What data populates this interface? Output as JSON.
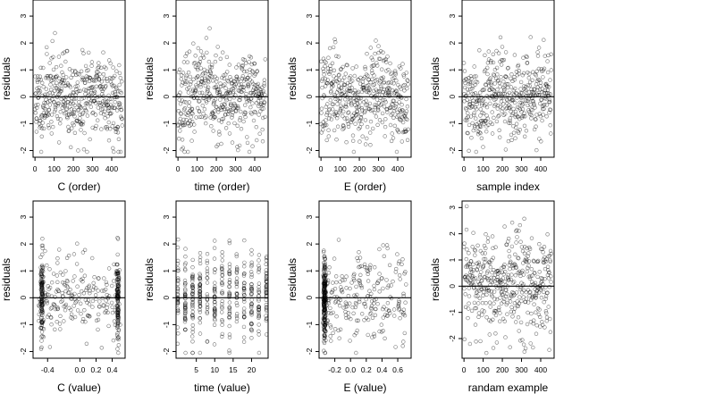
{
  "figure": {
    "background": "#ffffff",
    "point_color": "#000000",
    "line_color": "#000000"
  },
  "chart_data": [
    {
      "type": "scatter",
      "xlabel": "C (order)",
      "ylabel": "residuals",
      "xlim": [
        -10,
        470
      ],
      "ylim": [
        -2.25,
        3.6
      ],
      "xticks": [
        0,
        100,
        200,
        300,
        400
      ],
      "xticklabels": [
        "0",
        "100",
        "200",
        "300",
        "400"
      ],
      "yticks": [
        -2,
        -1,
        0,
        1,
        2,
        3
      ],
      "yticklabels": [
        "-2",
        "-1",
        "0",
        "1",
        "2",
        "3"
      ],
      "hline": 0,
      "grid": false,
      "n_points": 450,
      "point_style": "open-circle",
      "pattern": "ordered",
      "seed": 11
    },
    {
      "type": "scatter",
      "xlabel": "time (order)",
      "ylabel": "residuals",
      "xlim": [
        -10,
        470
      ],
      "ylim": [
        -2.25,
        3.6
      ],
      "xticks": [
        0,
        100,
        200,
        300,
        400
      ],
      "xticklabels": [
        "0",
        "100",
        "200",
        "300",
        "400"
      ],
      "yticks": [
        -2,
        -1,
        0,
        1,
        2,
        3
      ],
      "yticklabels": [
        "-2",
        "-1",
        "0",
        "1",
        "2",
        "3"
      ],
      "hline": 0,
      "grid": false,
      "n_points": 450,
      "point_style": "open-circle",
      "pattern": "ordered",
      "seed": 23
    },
    {
      "type": "scatter",
      "xlabel": "E (order)",
      "ylabel": "residuals",
      "xlim": [
        -10,
        470
      ],
      "ylim": [
        -2.25,
        3.6
      ],
      "xticks": [
        0,
        100,
        200,
        300,
        400
      ],
      "xticklabels": [
        "0",
        "100",
        "200",
        "300",
        "400"
      ],
      "yticks": [
        -2,
        -1,
        0,
        1,
        2,
        3
      ],
      "yticklabels": [
        "-2",
        "-1",
        "0",
        "1",
        "2",
        "3"
      ],
      "hline": 0,
      "grid": false,
      "n_points": 450,
      "point_style": "open-circle",
      "pattern": "ordered",
      "seed": 37
    },
    {
      "type": "scatter",
      "xlabel": "sample index",
      "ylabel": "residuals",
      "xlim": [
        -10,
        470
      ],
      "ylim": [
        -2.25,
        3.6
      ],
      "xticks": [
        0,
        100,
        200,
        300,
        400
      ],
      "xticklabels": [
        "0",
        "100",
        "200",
        "300",
        "400"
      ],
      "yticks": [
        -2,
        -1,
        0,
        1,
        2,
        3
      ],
      "yticklabels": [
        "-2",
        "-1",
        "0",
        "1",
        "2",
        "3"
      ],
      "hline": 0,
      "grid": false,
      "n_points": 450,
      "point_style": "open-circle",
      "pattern": "ordered",
      "seed": 41
    },
    {
      "type": "scatter",
      "xlabel": "C (value)",
      "ylabel": "residuals",
      "xlim": [
        -0.58,
        0.56
      ],
      "ylim": [
        -2.25,
        3.6
      ],
      "xticks": [
        -0.4,
        0.0,
        0.2,
        0.4
      ],
      "xticklabels": [
        "-0.4",
        "0.0",
        "0.2",
        "0.4"
      ],
      "yticks": [
        -2,
        -1,
        0,
        1,
        2,
        3
      ],
      "yticklabels": [
        "-2",
        "-1",
        "0",
        "1",
        "2",
        "3"
      ],
      "hline": 0,
      "grid": false,
      "n_points": 450,
      "point_style": "open-circle",
      "pattern": "clustered",
      "clusters": [
        -0.47,
        0.47
      ],
      "seed": 53
    },
    {
      "type": "scatter",
      "xlabel": "time (value)",
      "ylabel": "residuals",
      "xlim": [
        -0.5,
        24.5
      ],
      "ylim": [
        -2.25,
        3.6
      ],
      "xticks": [
        5,
        10,
        15,
        20
      ],
      "xticklabels": [
        "5",
        "10",
        "15",
        "20"
      ],
      "yticks": [
        -2,
        -1,
        0,
        1,
        2,
        3
      ],
      "yticklabels": [
        "-2",
        "-1",
        "0",
        "1",
        "2",
        "3"
      ],
      "hline": 0,
      "grid": false,
      "n_points": 450,
      "point_style": "open-circle",
      "pattern": "discrete",
      "levels": [
        0,
        2,
        4,
        6,
        8,
        10,
        12,
        14,
        16,
        18,
        20,
        22,
        24
      ],
      "seed": 67
    },
    {
      "type": "scatter",
      "xlabel": "E (value)",
      "ylabel": "residuals",
      "xlim": [
        -0.4,
        0.77
      ],
      "ylim": [
        -2.25,
        3.6
      ],
      "xticks": [
        -0.2,
        0.0,
        0.2,
        0.4,
        0.6
      ],
      "xticklabels": [
        "-0.2",
        "0.0",
        "0.2",
        "0.4",
        "0.6"
      ],
      "yticks": [
        -2,
        -1,
        0,
        1,
        2,
        3
      ],
      "yticklabels": [
        "-2",
        "-1",
        "0",
        "1",
        "2",
        "3"
      ],
      "hline": 0,
      "grid": false,
      "n_points": 450,
      "point_style": "open-circle",
      "pattern": "clustered",
      "clusters": [
        -0.33
      ],
      "seed": 79
    },
    {
      "type": "scatter",
      "xlabel": "randam example",
      "ylabel": "residuals",
      "xlim": [
        -10,
        470
      ],
      "ylim": [
        -2.75,
        3.25
      ],
      "xticks": [
        0,
        100,
        200,
        300,
        400
      ],
      "xticklabels": [
        "0",
        "100",
        "200",
        "300",
        "400"
      ],
      "yticks": [
        -2,
        -1,
        0,
        1,
        2,
        3
      ],
      "yticklabels": [
        "-2",
        "-1",
        "0",
        "1",
        "2",
        "3"
      ],
      "hline": 0,
      "grid": false,
      "n_points": 450,
      "point_style": "open-circle",
      "pattern": "random",
      "seed": 97
    }
  ]
}
